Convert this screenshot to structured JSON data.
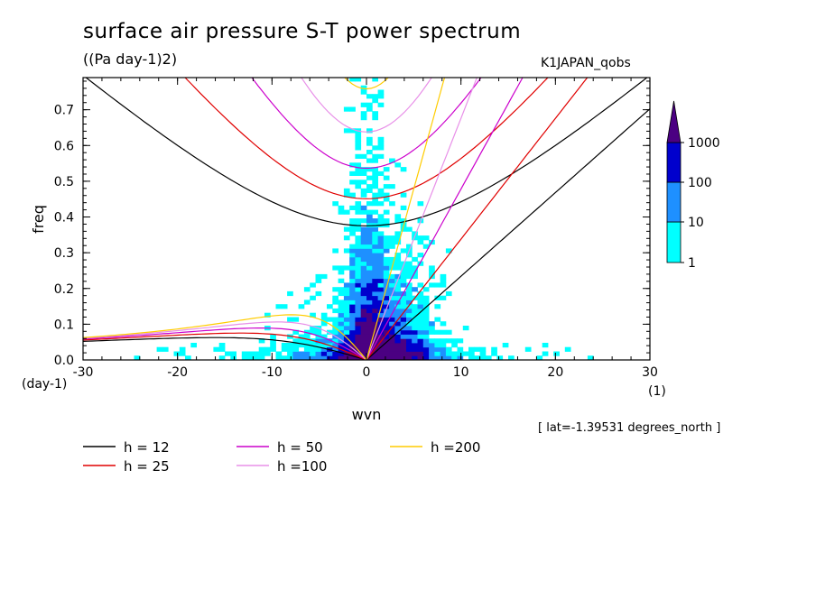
{
  "chart_data": {
    "type": "heatmap",
    "title": "surface air pressure S-T power spectrum",
    "units": "((Pa day-1)2)",
    "dataset": "K1JAPAN_qobs",
    "note": "[ lat=-1.39531 degrees_north ]",
    "xlabel": "wvn",
    "ylabel": "freq",
    "x_unit": "(1)",
    "y_unit": "(day-1)",
    "xlim": [
      -30,
      30
    ],
    "ylim": [
      0,
      0.79
    ],
    "xticks": [
      "-30",
      "-20",
      "-10",
      "0",
      "10",
      "20",
      "30"
    ],
    "yticks": [
      "0.0",
      "0.1",
      "0.2",
      "0.3",
      "0.4",
      "0.5",
      "0.6",
      "0.7"
    ],
    "colorbar": {
      "labels": [
        "1",
        "10",
        "100",
        "1000"
      ],
      "colors": [
        "#00ffff",
        "#1e90ff",
        "#0000cd",
        "#4b0082"
      ]
    },
    "legend": [
      {
        "label": "h = 12",
        "color": "#000000"
      },
      {
        "label": "h = 25",
        "color": "#e00000"
      },
      {
        "label": "h = 50",
        "color": "#cc00cc"
      },
      {
        "label": "h =100",
        "color": "#e890e8"
      },
      {
        "label": "h =200",
        "color": "#ffcc00"
      }
    ],
    "equivalent_depths": [
      12,
      25,
      50,
      100,
      200
    ]
  }
}
